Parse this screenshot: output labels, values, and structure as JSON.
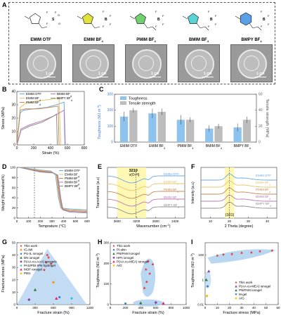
{
  "panelA": {
    "label": "A",
    "ions": [
      {
        "name": "EMIM OTF",
        "ring_color": "#3a3a3a"
      },
      {
        "name": "EMIM BF",
        "sub": "4",
        "ring_color": "#e0e23a"
      },
      {
        "name": "PMIM BF",
        "sub": "4",
        "ring_color": "#6fd16f"
      },
      {
        "name": "BMIM BF",
        "sub": "4",
        "ring_color": "#59d3d3"
      },
      {
        "name": "BMPY BF",
        "sub": "4",
        "ring_color": "#5aa0e6"
      }
    ],
    "scale_label": "1 cm"
  },
  "panelB": {
    "label": "B",
    "chart_data": {
      "type": "line",
      "xlabel": "Strain (%)",
      "ylabel": "Stress (MPa)",
      "xlim": [
        0,
        800
      ],
      "ylim": [
        0,
        40
      ],
      "xticks": [
        0,
        200,
        400,
        600,
        800
      ],
      "yticks": [
        0,
        10,
        20,
        30,
        40
      ],
      "series": [
        {
          "name": "EMIM OTF",
          "color": "#6aa9e4",
          "points": [
            [
              0,
              0
            ],
            [
              40,
              24
            ],
            [
              80,
              26
            ],
            [
              200,
              27
            ],
            [
              350,
              28
            ],
            [
              470,
              30
            ],
            [
              560,
              32
            ],
            [
              575,
              0
            ]
          ]
        },
        {
          "name": "EMIM BF4",
          "sub": "4",
          "color": "#e5c66a",
          "points": [
            [
              0,
              0
            ],
            [
              40,
              28
            ],
            [
              100,
              31
            ],
            [
              250,
              33
            ],
            [
              400,
              34
            ],
            [
              500,
              35
            ],
            [
              520,
              0
            ]
          ]
        },
        {
          "name": "PMIM BF4",
          "sub": "4",
          "color": "#c88a55",
          "points": [
            [
              0,
              0
            ],
            [
              40,
              26
            ],
            [
              100,
              27
            ],
            [
              250,
              27
            ],
            [
              380,
              28
            ],
            [
              490,
              29
            ],
            [
              500,
              0
            ]
          ]
        },
        {
          "name": "BMIM BF4",
          "sub": "4",
          "color": "#b979b6",
          "points": [
            [
              0,
              0
            ],
            [
              50,
              12
            ],
            [
              150,
              15
            ],
            [
              300,
              18
            ],
            [
              450,
              22
            ],
            [
              560,
              26
            ],
            [
              570,
              0
            ]
          ]
        },
        {
          "name": "BMPY BF4",
          "sub": "4",
          "color": "#8d8d8d",
          "points": [
            [
              0,
              0
            ],
            [
              50,
              11
            ],
            [
              150,
              14
            ],
            [
              300,
              17
            ],
            [
              420,
              21
            ],
            [
              470,
              23
            ],
            [
              480,
              0
            ]
          ]
        }
      ]
    }
  },
  "panelC": {
    "label": "C",
    "chart_data": {
      "type": "bar",
      "categories": [
        "EMIM OTF",
        "EMIM BF4",
        "PMIM BF4",
        "BMIM BF4",
        "BMPY BF4"
      ],
      "ylabel_left": "Toughness (MJ m",
      "ylabel_left_sup": "-3",
      "ylabel_left_tail": ")",
      "ylabel_right": "Tensile strength (MPa)",
      "ylim_left": [
        0,
        300
      ],
      "ylim_right": [
        0,
        60
      ],
      "yticks_left": [
        0,
        100,
        200,
        300
      ],
      "yticks_right": [
        0,
        20,
        40,
        60
      ],
      "series": [
        {
          "name": "Toughness",
          "color": "#8ec3ee",
          "values": [
            160,
            180,
            140,
            85,
            92
          ],
          "err": [
            30,
            30,
            30,
            20,
            25
          ]
        },
        {
          "name": "Tensile strength",
          "color": "#bdbdbd",
          "values": [
            40,
            38,
            28,
            20,
            28
          ],
          "err": [
            3,
            4,
            3,
            3,
            4
          ]
        }
      ]
    }
  },
  "panelD": {
    "label": "D",
    "chart_data": {
      "type": "line",
      "xlabel": "Temprature (°C)",
      "ylabel": "Weight (Normalized%)",
      "xlim": [
        0,
        600
      ],
      "ylim": [
        0,
        100
      ],
      "xticks": [
        0,
        100,
        200,
        300,
        400,
        500,
        600
      ],
      "yticks": [
        0,
        20,
        40,
        60,
        80,
        100
      ],
      "series": [
        {
          "name": "EMIM OTF",
          "color": "#6aa9e4"
        },
        {
          "name": "EMIM BF4",
          "sub": "4",
          "color": "#e5c66a"
        },
        {
          "name": "PMIM BF4",
          "sub": "4",
          "color": "#c88a55"
        },
        {
          "name": "BMIM BF4",
          "sub": "4",
          "color": "#b979b6"
        },
        {
          "name": "BMPY BF4",
          "sub": "4",
          "color": "#8d8d8d"
        }
      ]
    }
  },
  "panelE": {
    "label": "E",
    "chart_data": {
      "type": "line",
      "xlabel": "Wavenumber (cm",
      "xlabel_sup": "-1",
      "xlabel_tail": ")",
      "ylabel": "Transmittance (a.u)",
      "xticks": [
        3600,
        3200,
        2800,
        2400
      ],
      "annotation_value": "3210",
      "annotation_label": "ν(O-H)",
      "series_labels": [
        "EMIM OTF",
        "EMIM BF",
        "PMIM BF",
        "BMIM BF",
        "BMPY BF"
      ],
      "series_subs": [
        "",
        "4",
        "4",
        "4",
        "4"
      ]
    }
  },
  "panelF": {
    "label": "F",
    "chart_data": {
      "type": "line",
      "xlabel": "2 Theta (degree)",
      "ylabel": "Intensity (a.u)",
      "xticks": [
        10,
        20,
        30,
        40
      ],
      "annotation": "(101)",
      "series_labels": [
        "EMIM OTF",
        "EMIM BF",
        "PMIM BF",
        "BMIM BF",
        "BMPY BF"
      ],
      "series_subs": [
        "",
        "4",
        "4",
        "4",
        "4"
      ]
    }
  },
  "panelG": {
    "label": "G",
    "chart_data": {
      "type": "scatter",
      "xlabel": "Fracture strain (%)",
      "ylabel": "Fracture stress (MPa)",
      "xlim": [
        0,
        1200
      ],
      "ylim": [
        0,
        50
      ],
      "xticks": [
        0,
        300,
        600,
        900,
        1200
      ],
      "yticks": [
        0,
        10,
        20,
        30,
        40,
        50
      ],
      "legend": [
        {
          "name": "This work",
          "color": "#e53935",
          "shape": "star"
        },
        {
          "name": "IG-IMI",
          "color": "#f39c12",
          "shape": "square"
        },
        {
          "name": "PU-IL ionogel",
          "color": "#3b7bd8",
          "shape": "circle"
        },
        {
          "name": "DN ionogel",
          "color": "#2e7d32",
          "shape": "triangle"
        },
        {
          "name": "P(AA-co-AAA) ionogels",
          "color": "#8e44ad",
          "shape": "diamond"
        },
        {
          "name": "PAS/PDI-IPN hydrogel",
          "color": "#00bcd4",
          "shape": "star"
        },
        {
          "name": "MOF-ionogel",
          "color": "#e91e63",
          "shape": "triangle"
        },
        {
          "name": "PIEs",
          "color": "#f1c40f",
          "shape": "square"
        }
      ]
    }
  },
  "panelH": {
    "label": "H",
    "chart_data": {
      "type": "scatter",
      "xlabel": "Fracture strain (%)",
      "ylabel": "Toughness (MJ m",
      "ylabel_sup": "-3",
      "ylabel_tail": ")",
      "xlim": [
        0,
        1000
      ],
      "ylim": [
        0,
        300
      ],
      "xticks": [
        0,
        200,
        400,
        600,
        800,
        1000
      ],
      "yticks": [
        0,
        100,
        200,
        300
      ],
      "legend": [
        {
          "name": "This work",
          "color": "#e53935",
          "shape": "star"
        },
        {
          "name": "PI-skin",
          "color": "#3b7bd8",
          "shape": "circle"
        },
        {
          "name": "PNIPAM Ionogel",
          "color": "#2e7d32",
          "shape": "triangle"
        },
        {
          "name": "HPA ionogel",
          "color": "#8e44ad",
          "shape": "diamond"
        },
        {
          "name": "P(AA-co-MEA) ionogel",
          "color": "#e91e63",
          "shape": "triangle"
        },
        {
          "name": "A/G",
          "color": "#f1c40f",
          "shape": "square"
        }
      ]
    }
  },
  "panelI": {
    "label": "I",
    "chart_data": {
      "type": "scatter",
      "xlabel": "Fracture stress (MPa)",
      "ylabel": "Toughness (MJ m",
      "ylabel_sup": "-3",
      "ylabel_tail": ")",
      "xlim": [
        0,
        60
      ],
      "yscale": "log",
      "ylim": [
        0.01,
        1000
      ],
      "xticks": [
        0,
        10,
        20,
        30,
        40,
        50,
        60
      ],
      "yticks": [
        "0.01",
        "1",
        "100"
      ],
      "legend": [
        {
          "name": "This work",
          "color": "#e53935",
          "shape": "star"
        },
        {
          "name": "P(AA-co-MEA) ionogel",
          "color": "#8e44ad",
          "shape": "triangle"
        },
        {
          "name": "PNIPAM ionogel",
          "color": "#2e7d32",
          "shape": "triangle"
        },
        {
          "name": "M-gel",
          "color": "#3b7bd8",
          "shape": "circle"
        },
        {
          "name": "A/G",
          "color": "#f1c40f",
          "shape": "square"
        }
      ]
    }
  }
}
